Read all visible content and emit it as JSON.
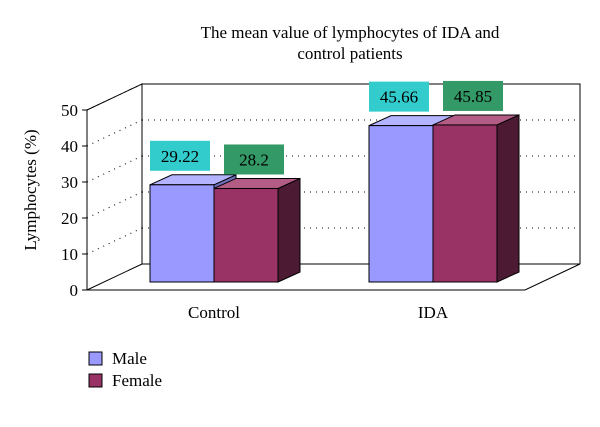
{
  "chart_data": {
    "type": "bar",
    "title_lines": [
      "The mean value of lymphocytes of IDA and",
      "control patients"
    ],
    "xlabel": "",
    "ylabel": "Lymphocytes (%)",
    "ylim": [
      0,
      50
    ],
    "yticks": [
      "0",
      "10",
      "20",
      "30",
      "40",
      "50"
    ],
    "categories": [
      "Control",
      "IDA"
    ],
    "series": [
      {
        "name": "Male",
        "values": [
          29.22,
          45.66
        ],
        "labels": [
          "29.22",
          "45.66"
        ],
        "color": "#9999ff",
        "side_color": "#6e6eb8",
        "top_color": "#b3b3ff",
        "label_bg": "#33cccc"
      },
      {
        "name": "Female",
        "values": [
          28.2,
          45.85
        ],
        "labels": [
          "28.2",
          "45.85"
        ],
        "color": "#993366",
        "side_color": "#4d1a33",
        "top_color": "#b35c85",
        "label_bg": "#339966"
      }
    ],
    "grid": true,
    "legend_position": "bottom-left",
    "style": "3d-clustered-column"
  }
}
